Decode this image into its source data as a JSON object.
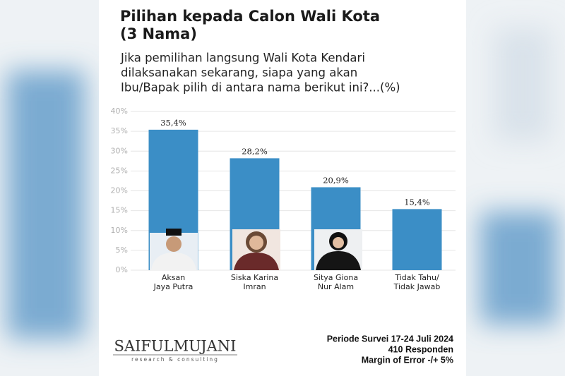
{
  "chart_data": {
    "type": "bar",
    "title": [
      "Pilihan kepada Calon Wali Kota",
      "(3 Nama)"
    ],
    "subtitle": [
      "Jika pemilihan langsung Wali Kota Kendari",
      "dilaksanakan sekarang, siapa yang akan",
      "Ibu/Bapak pilih di antara nama berikut ini?...(%)"
    ],
    "categories": [
      [
        "Aksan",
        "Jaya Putra"
      ],
      [
        "Siska Karina",
        "Imran"
      ],
      [
        "Sitya Giona",
        "Nur Alam"
      ],
      [
        "Tidak Tahu/",
        "Tidak Jawab"
      ]
    ],
    "values": [
      35.4,
      28.2,
      20.9,
      15.4
    ],
    "value_labels": [
      "35,4%",
      "28,2%",
      "20,9%",
      "15,4%"
    ],
    "color": "#3b8ec6",
    "ylim": [
      0,
      40
    ],
    "yticks": [
      {
        "value": 0,
        "label": "0%"
      },
      {
        "value": 5,
        "label": "5%"
      },
      {
        "value": 10,
        "label": "10%"
      },
      {
        "value": 15,
        "label": "15%"
      },
      {
        "value": 20,
        "label": "20%"
      },
      {
        "value": 25,
        "label": "25%"
      },
      {
        "value": 30,
        "label": "30%"
      },
      {
        "value": 35,
        "label": "35%"
      },
      {
        "value": 40,
        "label": "40%"
      }
    ],
    "grid": true,
    "logo": "SAIFULMUJANI",
    "logo_tagline": "research & consulting",
    "notes": [
      "Periode Survei 17-24 Juli 2024",
      "410 Responden",
      "Margin of Error -/+ 5%"
    ]
  }
}
